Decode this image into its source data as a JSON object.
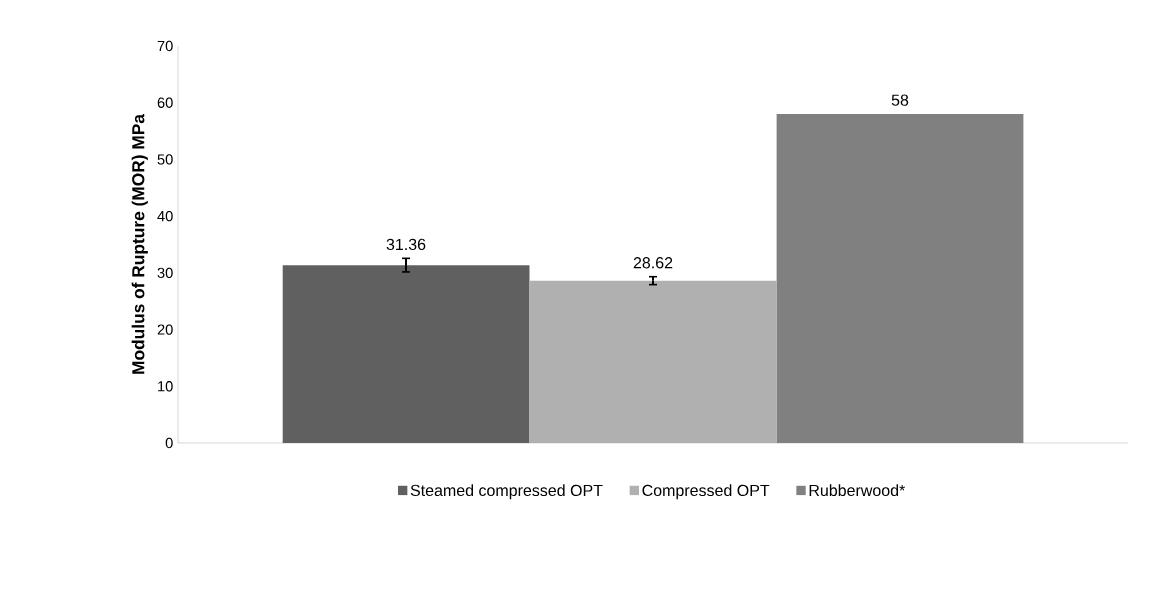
{
  "chart_data": {
    "type": "bar",
    "ylabel": "Modulus of Rupture (MOR) MPa",
    "categories": [
      null
    ],
    "series": [
      {
        "name": "Steamed compressed OPT",
        "color": "#606060",
        "values": [
          31.36
        ],
        "errors": [
          1.2
        ]
      },
      {
        "name": "Compressed OPT",
        "color": "#b0b0b0",
        "values": [
          28.62
        ],
        "errors": [
          0.7
        ]
      },
      {
        "name": "Rubberwood*",
        "color": "#808080",
        "values": [
          58
        ],
        "errors": [
          null
        ]
      }
    ],
    "ylim": [
      0,
      70
    ],
    "yticks": [
      0,
      10,
      20,
      30,
      40,
      50,
      60,
      70
    ],
    "data_labels": true,
    "legend": "bottom",
    "grid": false
  }
}
